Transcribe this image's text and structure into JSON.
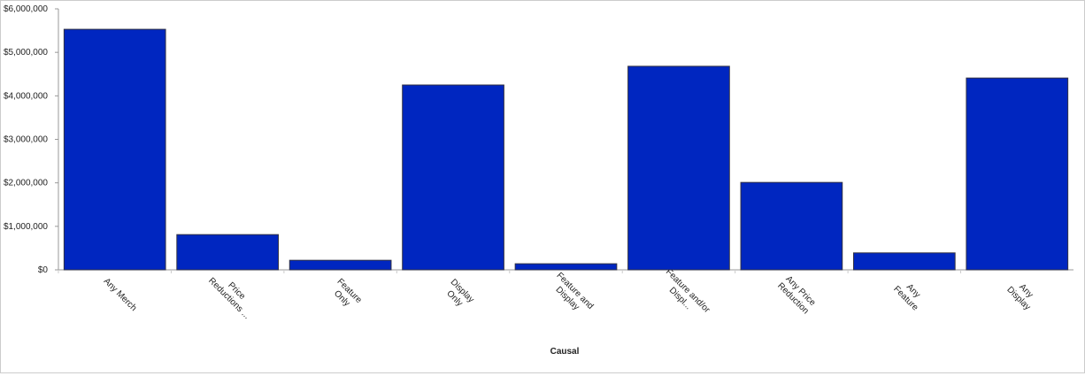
{
  "chart_data": {
    "type": "bar",
    "x_label": "Causal",
    "categories": [
      "Any Merch",
      "Price\nReductions ...",
      "Feature\nOnly",
      "Display\nOnly",
      "Feature and\nDisplay",
      "Feature and/or\nDispl...",
      "Any Price\nReduction",
      "Any\nFeature",
      "Any\nDisplay"
    ],
    "values": [
      5530000,
      810000,
      220000,
      4250000,
      140000,
      4680000,
      2010000,
      390000,
      4410000
    ],
    "color": "#0026c0",
    "ylim": [
      0,
      6000000
    ],
    "yticks": [
      {
        "value": 0,
        "label": "$0"
      },
      {
        "value": 1000000,
        "label": "$1,000,000"
      },
      {
        "value": 2000000,
        "label": "$2,000,000"
      },
      {
        "value": 3000000,
        "label": "$3,000,000"
      },
      {
        "value": 4000000,
        "label": "$4,000,000"
      },
      {
        "value": 5000000,
        "label": "$5,000,000"
      },
      {
        "value": 6000000,
        "label": "$6,000,000"
      }
    ],
    "grid": false
  }
}
